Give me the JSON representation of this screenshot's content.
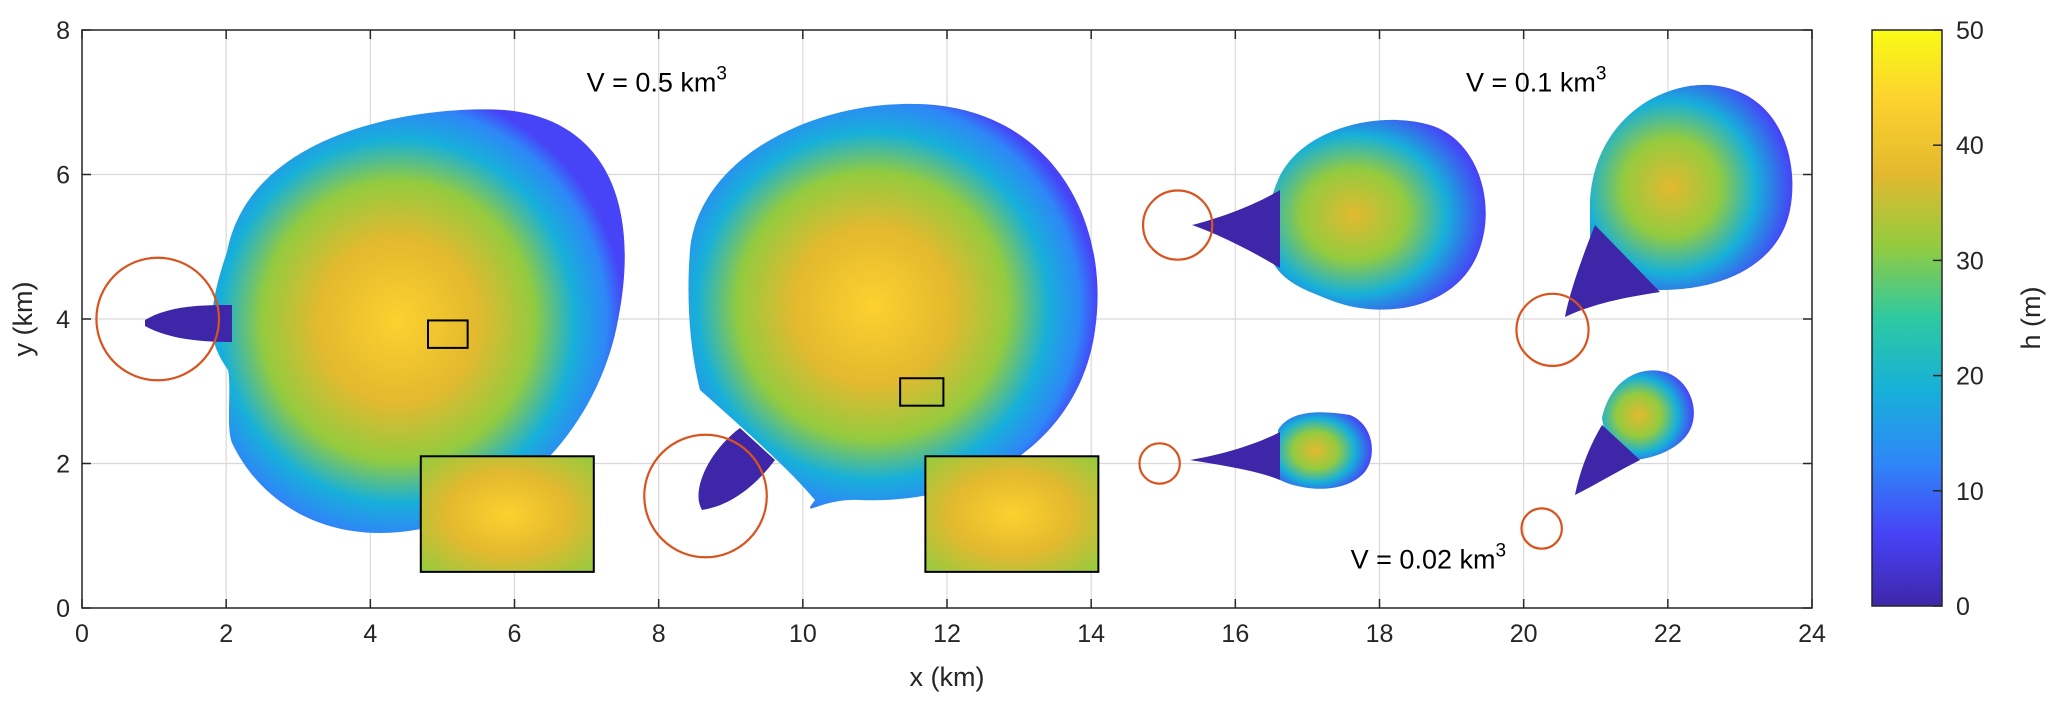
{
  "chart_data": {
    "type": "heatmap",
    "title": "",
    "xlabel": "x (km)",
    "ylabel": "y (km)",
    "xlim": [
      0,
      24
    ],
    "ylim": [
      0,
      8
    ],
    "xticks": [
      "0",
      "2",
      "4",
      "6",
      "8",
      "10",
      "12",
      "14",
      "16",
      "18",
      "20",
      "22",
      "24"
    ],
    "yticks": [
      "0",
      "2",
      "4",
      "6",
      "8"
    ],
    "grid": true,
    "colorbar": {
      "label": "h (m)",
      "range": [
        0,
        50
      ],
      "ticks": [
        "0",
        "10",
        "20",
        "30",
        "40",
        "50"
      ],
      "colormap": [
        "#3e26a8",
        "#4743f7",
        "#2e87f7",
        "#17b0d9",
        "#2ec9a1",
        "#93cb3f",
        "#e3b92f",
        "#fcd12f",
        "#f9fb15"
      ]
    },
    "annotations": [
      {
        "base": "V = 0.5 km",
        "sup": "3",
        "x": 7.0,
        "y": 7.15
      },
      {
        "base": "V = 0.1 km",
        "sup": "3",
        "x": 19.2,
        "y": 7.15
      },
      {
        "base": "V = 0.02 km",
        "sup": "3",
        "x": 17.6,
        "y": 0.55
      }
    ],
    "source_circles": [
      {
        "x": 1.05,
        "y": 4.0,
        "r": 0.85
      },
      {
        "x": 8.65,
        "y": 1.55,
        "r": 0.85
      },
      {
        "x": 15.2,
        "y": 5.3,
        "r": 0.48
      },
      {
        "x": 20.4,
        "y": 3.85,
        "r": 0.5
      },
      {
        "x": 14.95,
        "y": 2.0,
        "r": 0.28
      },
      {
        "x": 20.25,
        "y": 1.1,
        "r": 0.28
      }
    ],
    "zoom_boxes": [
      {
        "x0": 4.8,
        "x1": 5.35,
        "y0": 3.6,
        "y1": 3.98
      },
      {
        "x0": 11.35,
        "x1": 11.95,
        "y0": 2.8,
        "y1": 3.18
      }
    ],
    "insets": [
      {
        "x0": 4.7,
        "x1": 7.1,
        "y0": 0.5,
        "y1": 2.1
      },
      {
        "x0": 11.7,
        "x1": 14.1,
        "y0": 0.5,
        "y1": 2.1
      }
    ]
  }
}
